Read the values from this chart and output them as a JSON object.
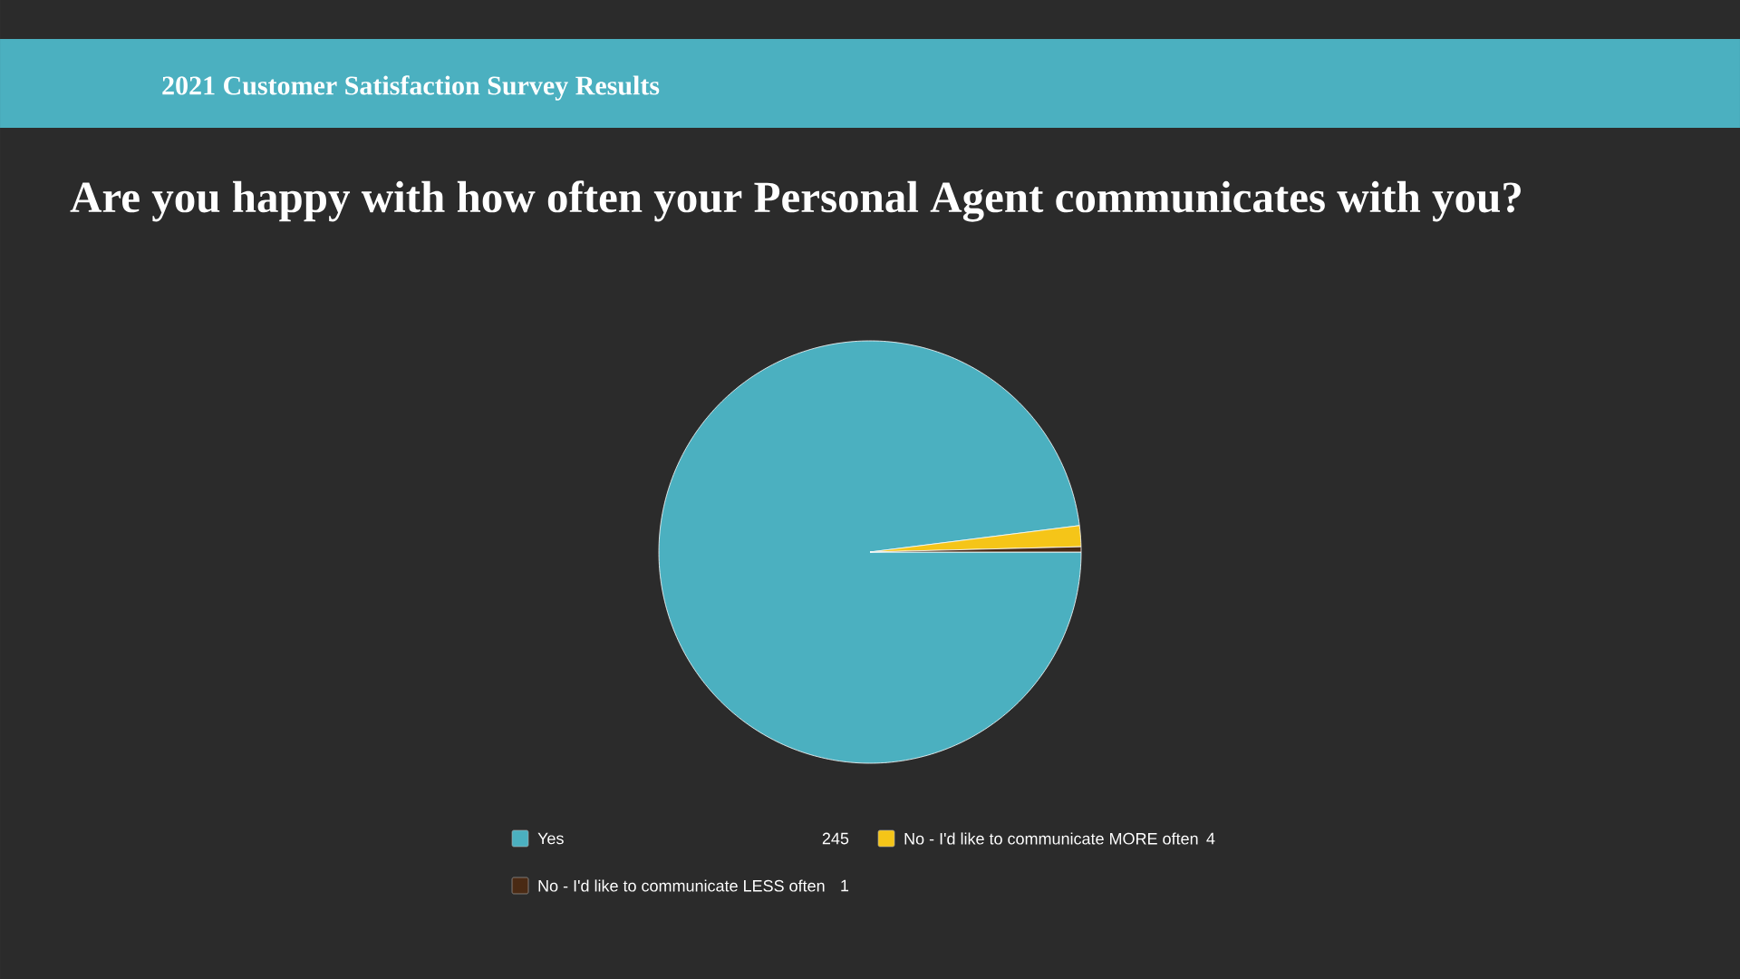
{
  "chart_data": {
    "type": "pie",
    "title": "2021 Customer Satisfaction Survey Results",
    "subtitle": "Are you happy with how often your Personal Agent communicates with you?",
    "categories": [
      "Yes",
      "No - I'd like to communicate MORE often",
      "No - I'd like to communicate LESS often"
    ],
    "values": [
      245,
      4,
      1
    ],
    "colors": [
      "#4bb0c0",
      "#f5c518",
      "#4a2a14"
    ],
    "data_labels": true,
    "legend": "bottom"
  }
}
